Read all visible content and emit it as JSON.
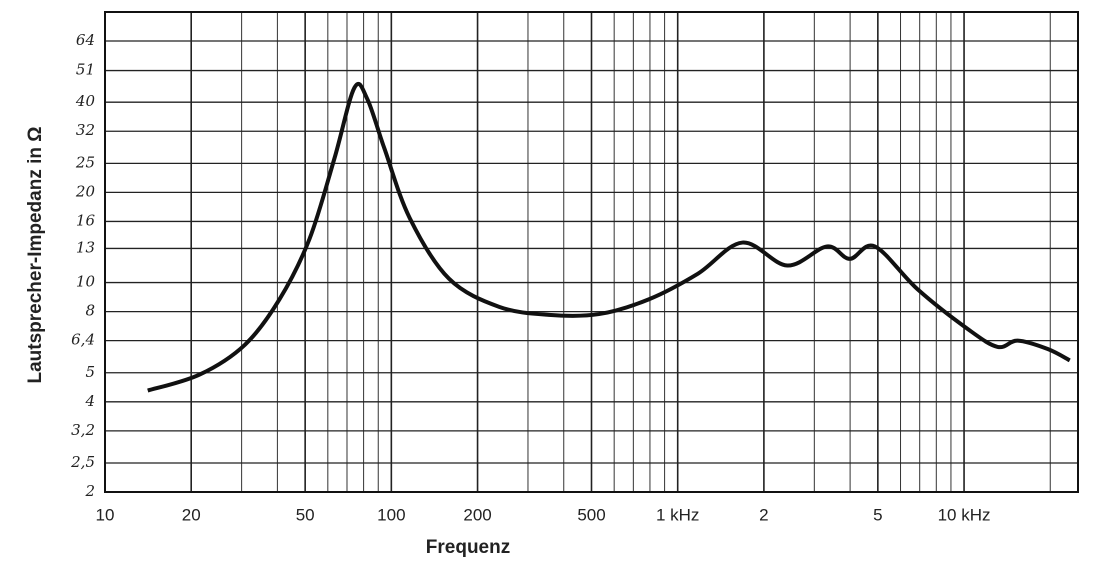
{
  "chart_data": {
    "type": "line",
    "xlabel": "Frequenz",
    "ylabel": "Lautsprecher-Impedanz in Ω",
    "xscale": "log",
    "yscale": "log",
    "grid": true,
    "xlim": [
      10,
      25000
    ],
    "ylim": [
      2,
      80
    ],
    "xticks": [
      10,
      20,
      50,
      100,
      200,
      500,
      {
        "value": 1000,
        "label": "1 kHz"
      },
      {
        "value": 2000,
        "label": "2"
      },
      {
        "value": 5000,
        "label": "5"
      },
      {
        "value": 10000,
        "label": "10 kHz"
      }
    ],
    "yticks": [
      2,
      {
        "value": 2.5,
        "label": "2,5"
      },
      {
        "value": 3.2,
        "label": "3,2"
      },
      4,
      5,
      {
        "value": 6.4,
        "label": "6,4"
      },
      8,
      10,
      13,
      16,
      20,
      25,
      32,
      40,
      51,
      64
    ],
    "series": [
      {
        "color": "#111111",
        "x": [
          14.1,
          21.4,
          30.8,
          40.7,
          51.8,
          63.3,
          74.3,
          82.4,
          94.6,
          116,
          159,
          238,
          355,
          531,
          794,
          1175,
          1683,
          2414,
          3320,
          3990,
          4880,
          6880,
          10300,
          13100,
          15400,
          19600,
          23400
        ],
        "values": [
          4.36,
          4.93,
          6.2,
          8.8,
          14,
          26,
          44.7,
          41,
          28,
          16.4,
          10.3,
          8.3,
          7.8,
          7.85,
          8.8,
          10.7,
          13.6,
          11.4,
          13.2,
          12,
          13.2,
          9.5,
          7.0,
          6.1,
          6.4,
          6.0,
          5.5
        ]
      }
    ]
  }
}
